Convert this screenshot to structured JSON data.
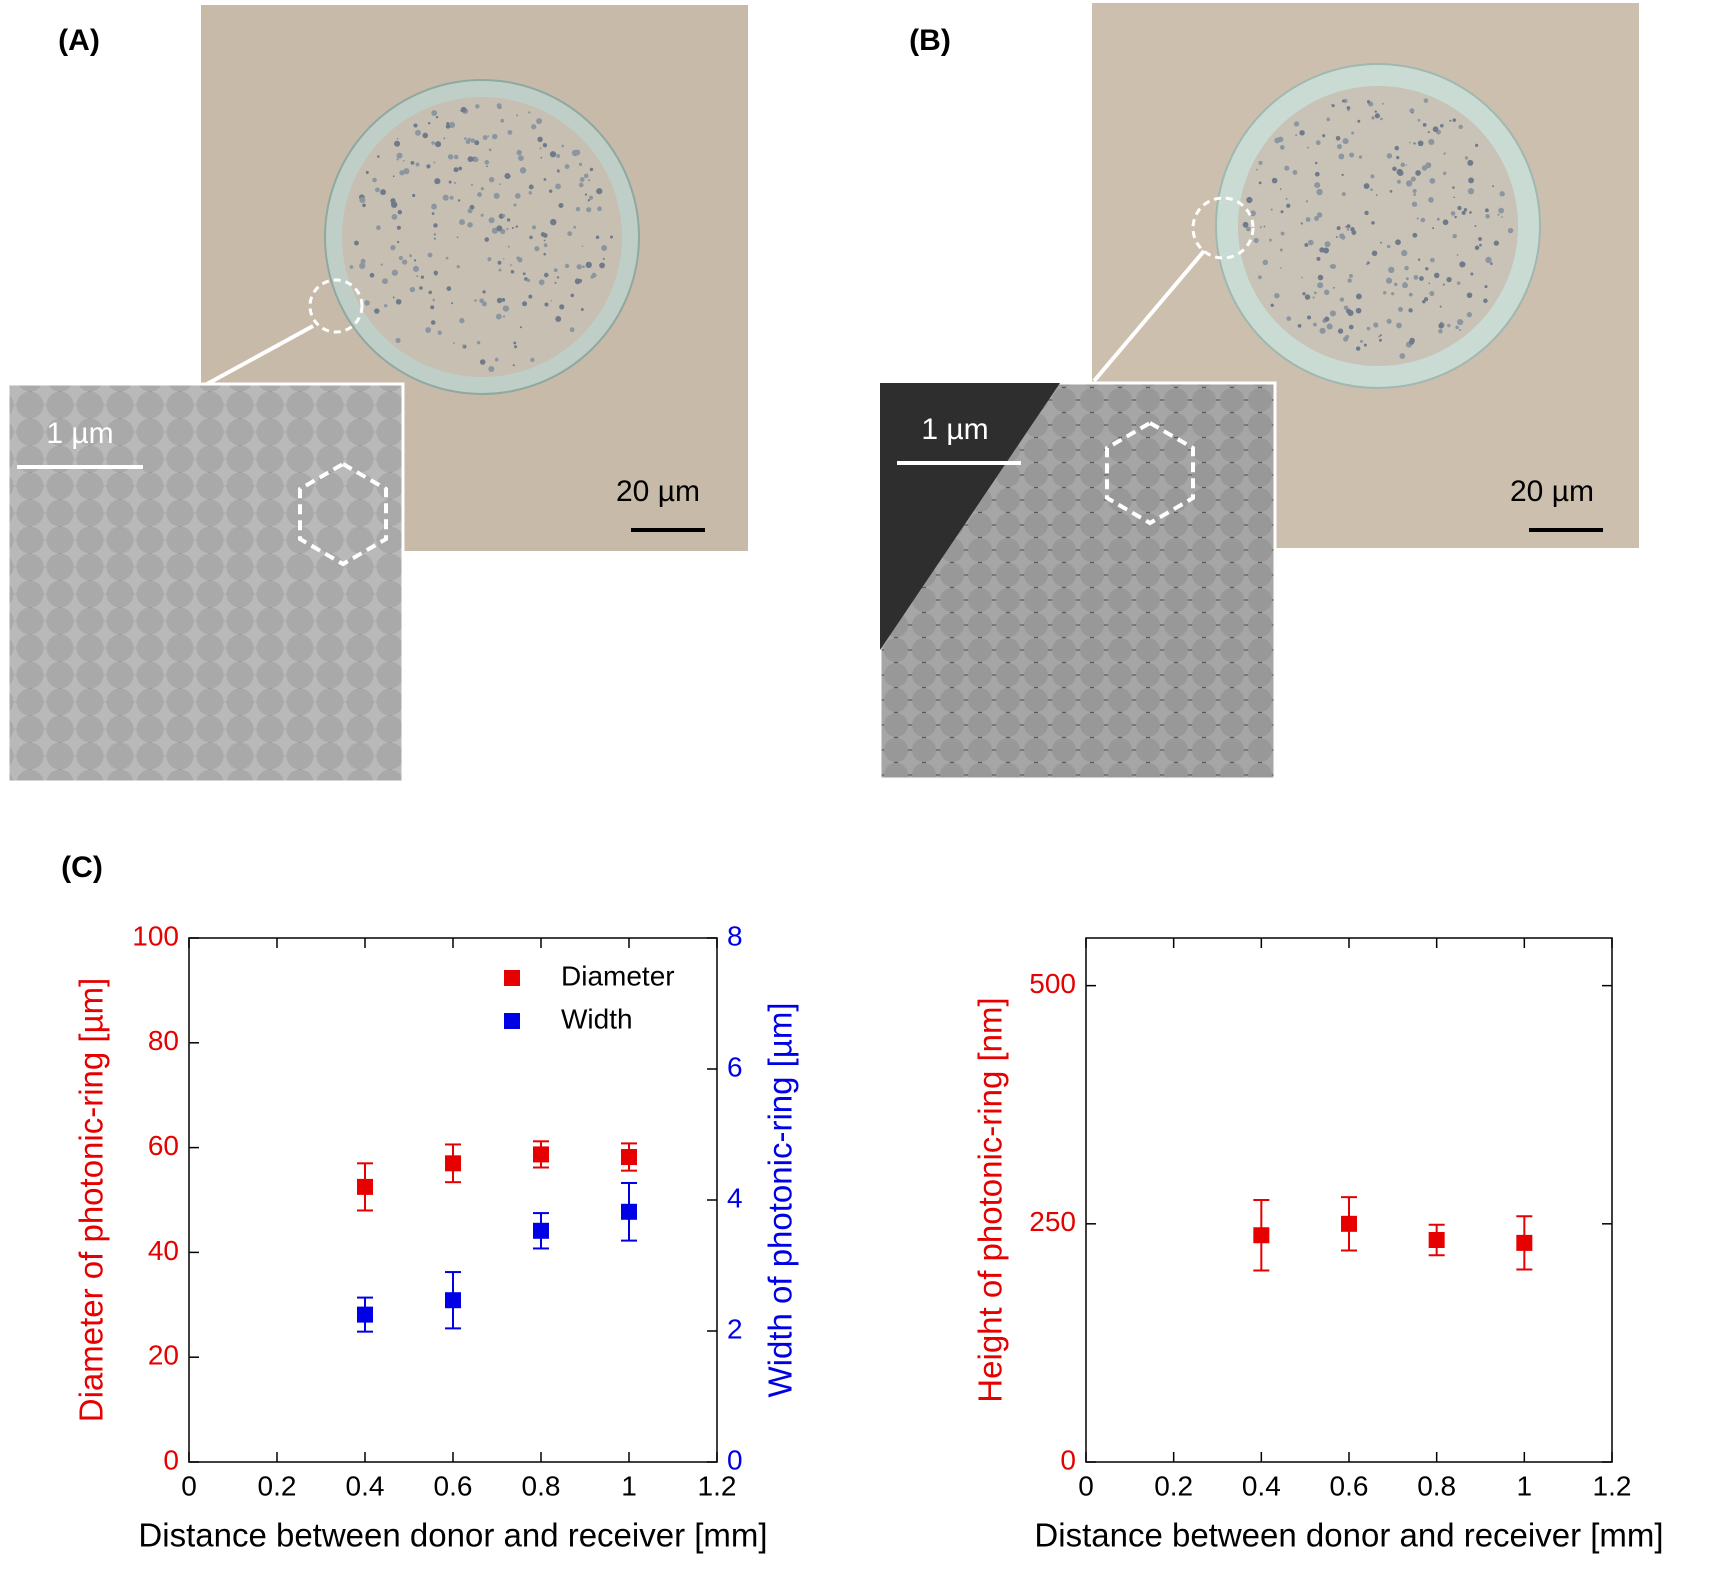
{
  "panel_labels": [
    "(A)",
    "(B)",
    "(C)"
  ],
  "micrographs": [
    {
      "scale_bar": "20 µm",
      "inset_scale_bar": "1 µm"
    },
    {
      "scale_bar": "20 µm",
      "inset_scale_bar": "1 µm"
    }
  ],
  "chart_data": [
    {
      "type": "scatter",
      "xlabel": "Distance between donor and receiver [mm]",
      "ylabel": "Diameter of photonic-ring [µm]",
      "y2label": "Width of photonic-ring [µm]",
      "x": [
        0.4,
        0.6,
        0.8,
        1
      ],
      "xlim": [
        0,
        1.2
      ],
      "xticks": [
        0,
        0.2,
        0.4,
        0.6,
        0.8,
        1,
        1.2
      ],
      "ylim": [
        0,
        100
      ],
      "yticks": [
        0,
        20,
        40,
        60,
        80,
        100
      ],
      "y2lim": [
        0,
        8
      ],
      "y2ticks": [
        0,
        2,
        4,
        6,
        8
      ],
      "legend": "upper right",
      "series": [
        {
          "name": "Diameter",
          "color": "#e60000",
          "values": [
            52.5,
            57,
            58.7,
            58.2
          ],
          "errors": [
            4.5,
            3.6,
            2.5,
            2.6
          ]
        },
        {
          "name": "Width",
          "color": "#0000e6",
          "axis": "y2",
          "values": [
            2.25,
            2.47,
            3.53,
            3.82
          ],
          "errors": [
            0.26,
            0.43,
            0.27,
            0.44
          ]
        }
      ]
    },
    {
      "type": "scatter",
      "xlabel": "Distance between donor and receiver [mm]",
      "ylabel": "Height of photonic-ring [nm]",
      "x": [
        0.4,
        0.6,
        0.8,
        1
      ],
      "xlim": [
        0,
        1.2
      ],
      "xticks": [
        0,
        0.2,
        0.4,
        0.6,
        0.8,
        1,
        1.2
      ],
      "ylim": [
        0,
        550
      ],
      "yticks": [
        0,
        250,
        500
      ],
      "series": [
        {
          "color": "#e60000",
          "values": [
            238,
            250,
            233,
            230
          ],
          "errors": [
            37,
            28,
            16,
            28
          ]
        }
      ]
    }
  ]
}
